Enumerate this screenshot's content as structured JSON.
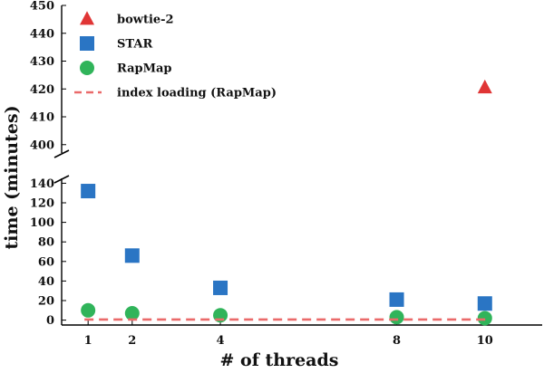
{
  "chart_data": {
    "type": "scatter",
    "title": "",
    "xlabel": "# of threads",
    "ylabel": "time (minutes)",
    "x_ticks": [
      1,
      2,
      4,
      8,
      10
    ],
    "y_ticks_lower": [
      0,
      20,
      40,
      60,
      80,
      100,
      120,
      140
    ],
    "y_ticks_upper": [
      400,
      410,
      420,
      430,
      440,
      450
    ],
    "ylim_lower": [
      -5,
      145
    ],
    "ylim_upper": [
      397,
      450
    ],
    "xlim": [
      0.4,
      11.3
    ],
    "axis_break": true,
    "grid": false,
    "legend_position": "top-left",
    "series": [
      {
        "name": "bowtie-2",
        "marker": "triangle",
        "color": "#e03535",
        "x": [
          10
        ],
        "y": [
          420.5
        ]
      },
      {
        "name": "STAR",
        "marker": "square",
        "color": "#2a75c4",
        "x": [
          1,
          2,
          4,
          8,
          10
        ],
        "y": [
          132,
          66,
          33,
          21,
          17
        ]
      },
      {
        "name": "RapMap",
        "marker": "circle",
        "color": "#30b45a",
        "x": [
          1,
          2,
          4,
          8,
          10
        ],
        "y": [
          10,
          7,
          5,
          3,
          2
        ]
      },
      {
        "name": "index loading (RapMap)",
        "marker": "dashed-line",
        "color": "#ea6a6a",
        "x": [
          1,
          10
        ],
        "y": [
          0.6,
          0.6
        ]
      }
    ]
  }
}
